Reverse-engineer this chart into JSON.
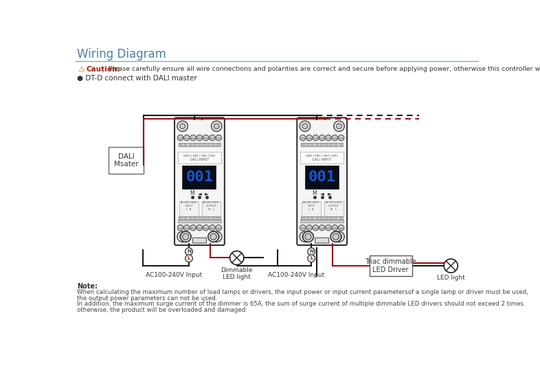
{
  "title": "Wiring Diagram",
  "title_color": "#4a7fa5",
  "title_fontsize": 12,
  "separator_color": "#7aacac",
  "bg_color": "#ffffff",
  "caution_text": "Caution:",
  "caution_detail": "Please carefully ensure all wire connections and polarities are correct and secure before applying power, otherwise this controller will be damaged.",
  "subtitle": "● DT-D connect with DALI master",
  "label_left_device": "DALI\nMsater",
  "label_left_input": "AC100-240V Input",
  "label_left_lamp": "Dimmable\nLED light",
  "label_right_input": "AC100-240V Input",
  "label_right_driver": "Triac dimmable\nLED Driver",
  "label_right_lamp": "LED light",
  "note_title": "Note:",
  "note_lines": [
    "When calculating the maximum number of load lamps or drivers, the input power or input current parametersof a single lamp or driver must be used,",
    "the output power parameters can not be used.",
    "In addition, the maximum surge current of the dimmer is 65A, the sum of surge current of multiple dimmable LED drivers should not exceed 2 times.",
    "otherwise, the product will be overloaded and damaged."
  ],
  "wire_black": "#1a1a1a",
  "wire_red": "#991111",
  "device_bg": "#f0f0f0",
  "device_border": "#333333",
  "display_bg": "#050e1a",
  "display_digit": "#2255cc",
  "screw_color": "#aaaaaa",
  "terminal_color": "#cccccc",
  "dali_box_color": "#ffffff",
  "driver_box_color": "#ffffff"
}
